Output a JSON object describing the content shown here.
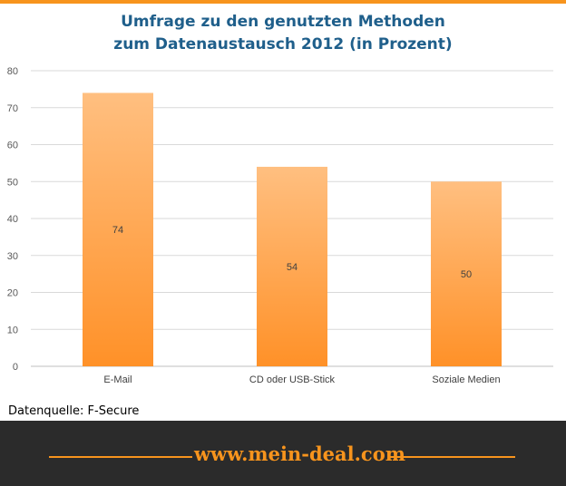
{
  "chart_data": {
    "type": "bar",
    "title_line1": "Umfrage zu den genutzten Methoden",
    "title_line2": "zum Datenaustausch  2012 (in Prozent)",
    "categories": [
      "E-Mail",
      "CD oder USB-Stick",
      "Soziale Medien"
    ],
    "values": [
      74,
      54,
      50
    ],
    "data_labels": [
      "74",
      "54",
      "50"
    ],
    "ylim": [
      0,
      80
    ],
    "yticks": [
      0,
      10,
      20,
      30,
      40,
      50,
      60,
      70,
      80
    ],
    "grid": true,
    "xlabel": "",
    "ylabel": "",
    "bar_color_top": "#ffbf80",
    "bar_color_bottom": "#ff9128"
  },
  "source_text": "Datenquelle: F-Secure",
  "footer": {
    "url": "www.mein-deal.com"
  },
  "colors": {
    "accent": "#f7941d",
    "title": "#1f5f8b",
    "footer_bg": "#2b2b2b"
  }
}
